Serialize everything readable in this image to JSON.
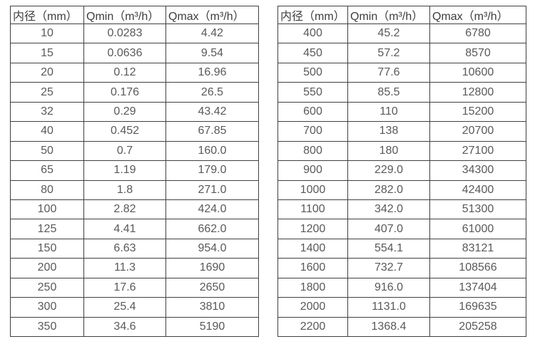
{
  "colors": {
    "background": "#ffffff",
    "border": "#404040",
    "header_text": "#3d3d3d",
    "cell_text": "#595959"
  },
  "tables": [
    {
      "name": "flow-rate-table-small-diameters",
      "headers": [
        "内径（mm）",
        "Qmin（m³/h）",
        "Qmax（m³/h）"
      ],
      "rows": [
        [
          "10",
          "0.0283",
          "4.42"
        ],
        [
          "15",
          "0.0636",
          "9.54"
        ],
        [
          "20",
          "0.12",
          "16.96"
        ],
        [
          "25",
          "0.176",
          "26.5"
        ],
        [
          "32",
          "0.29",
          "43.42"
        ],
        [
          "40",
          "0.452",
          "67.85"
        ],
        [
          "50",
          "0.7",
          "160.0"
        ],
        [
          "65",
          "1.19",
          "179.0"
        ],
        [
          "80",
          "1.8",
          "271.0"
        ],
        [
          "100",
          "2.82",
          "424.0"
        ],
        [
          "125",
          "4.41",
          "662.0"
        ],
        [
          "150",
          "6.63",
          "954.0"
        ],
        [
          "200",
          "11.3",
          "1690"
        ],
        [
          "250",
          "17.6",
          "2650"
        ],
        [
          "300",
          "25.4",
          "3810"
        ],
        [
          "350",
          "34.6",
          "5190"
        ]
      ]
    },
    {
      "name": "flow-rate-table-large-diameters",
      "headers": [
        "内径（mm）",
        "Qmin（m³/h）",
        "Qmax（m³/h）"
      ],
      "rows": [
        [
          "400",
          "45.2",
          "6780"
        ],
        [
          "450",
          "57.2",
          "8570"
        ],
        [
          "500",
          "77.6",
          "10600"
        ],
        [
          "550",
          "85.5",
          "12800"
        ],
        [
          "600",
          "110",
          "15200"
        ],
        [
          "700",
          "138",
          "20700"
        ],
        [
          "800",
          "180",
          "27100"
        ],
        [
          "900",
          "229.0",
          "34300"
        ],
        [
          "1000",
          "282.0",
          "42400"
        ],
        [
          "1100",
          "342.0",
          "51300"
        ],
        [
          "1200",
          "407.0",
          "61000"
        ],
        [
          "1400",
          "554.1",
          "83121"
        ],
        [
          "1600",
          "732.7",
          "108566"
        ],
        [
          "1800",
          "916.0",
          "137404"
        ],
        [
          "2000",
          "1131.0",
          "169635"
        ],
        [
          "2200",
          "1368.4",
          "205258"
        ]
      ]
    }
  ]
}
